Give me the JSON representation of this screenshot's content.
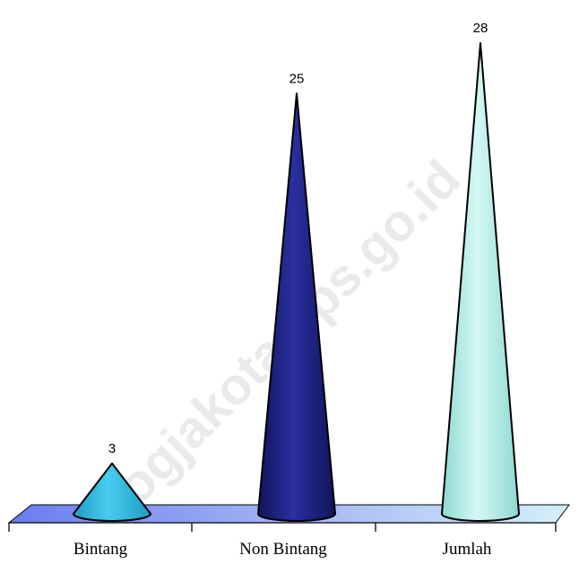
{
  "chart_data": {
    "type": "bar",
    "bar_shape": "cone",
    "categories": [
      "Bintang",
      "Non Bintang",
      "Jumlah"
    ],
    "values": [
      3,
      25,
      28
    ],
    "data_labels": [
      "3",
      "25",
      "28"
    ],
    "colors": [
      "#29b8de",
      "#1a1e7e",
      "#b2ece6"
    ],
    "floor_color": "#7c8cf0",
    "ylim": [
      0,
      28
    ],
    "grid": false,
    "legend": "none"
  },
  "watermark": "jogjakota.bps.go.id"
}
